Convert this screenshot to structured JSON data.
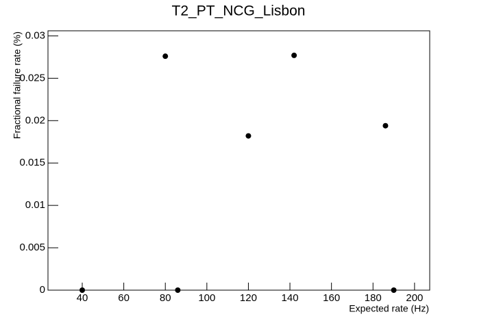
{
  "chart_data": {
    "type": "scatter",
    "title": "T2_PT_NCG_Lisbon",
    "x_label": "Expected rate (Hz)",
    "y_label": "Fractional failure rate (%)",
    "color": "#000000",
    "x": [
      40,
      80,
      86,
      120,
      142,
      186,
      190
    ],
    "values": [
      0,
      0.0276,
      0,
      0.0182,
      0.0277,
      0.0194,
      0
    ],
    "xlim": [
      23.5,
      207.3
    ],
    "ylim": [
      0,
      0.0306
    ],
    "xticks": [
      40,
      60,
      80,
      100,
      120,
      140,
      160,
      180,
      200
    ],
    "yticks": [
      0,
      0.005,
      0.01,
      0.015,
      0.02,
      0.025,
      0.03
    ],
    "grid": false
  }
}
